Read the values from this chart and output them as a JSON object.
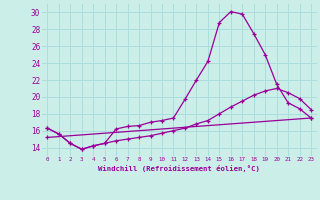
{
  "xlabel": "Windchill (Refroidissement éolien,°C)",
  "ylabel": "",
  "bg_color": "#cceee8",
  "grid_color": "#aadddd",
  "line_color": "#990099",
  "xlim": [
    -0.5,
    23.5
  ],
  "ylim": [
    13.0,
    31.0
  ],
  "yticks": [
    14,
    16,
    18,
    20,
    22,
    24,
    26,
    28,
    30
  ],
  "xticks": [
    0,
    1,
    2,
    3,
    4,
    5,
    6,
    7,
    8,
    9,
    10,
    11,
    12,
    13,
    14,
    15,
    16,
    17,
    18,
    19,
    20,
    21,
    22,
    23
  ],
  "line1_x": [
    0,
    1,
    2,
    3,
    4,
    5,
    6,
    7,
    8,
    9,
    10,
    11,
    12,
    13,
    14,
    15,
    16,
    17,
    18,
    19,
    20,
    21,
    22,
    23
  ],
  "line1_y": [
    16.3,
    15.6,
    14.5,
    13.8,
    14.2,
    14.5,
    16.2,
    16.5,
    16.6,
    17.0,
    17.2,
    17.5,
    19.7,
    22.0,
    24.2,
    28.8,
    30.1,
    29.8,
    27.5,
    25.0,
    21.5,
    19.3,
    18.6,
    17.5
  ],
  "line2_x": [
    0,
    1,
    2,
    3,
    4,
    5,
    6,
    7,
    8,
    9,
    10,
    11,
    12,
    13,
    14,
    15,
    16,
    17,
    18,
    19,
    20,
    21,
    22,
    23
  ],
  "line2_y": [
    16.3,
    15.6,
    14.5,
    13.8,
    14.2,
    14.5,
    14.8,
    15.0,
    15.2,
    15.4,
    15.7,
    16.0,
    16.3,
    16.8,
    17.2,
    18.0,
    18.8,
    19.5,
    20.2,
    20.7,
    21.0,
    20.5,
    19.8,
    18.5
  ],
  "line3_x": [
    0,
    23
  ],
  "line3_y": [
    15.2,
    17.5
  ]
}
